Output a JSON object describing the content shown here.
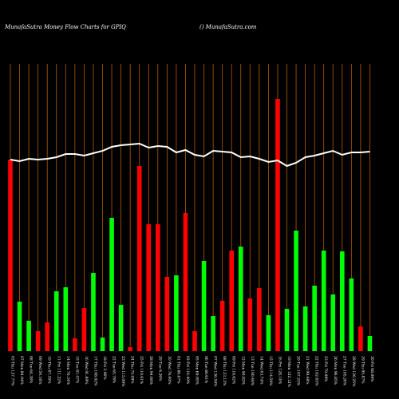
{
  "chart_data": {
    "type": "bar",
    "title": "MunafaSutra  Money Flow  Charts for GPIQ",
    "subtitle": "() MunafaSutra.com",
    "categories": [
      "03 Thu 127.77%",
      "07 Mon 84.04%",
      "08 Tue 64.38%",
      "09 Wed 54.16%",
      "10 Thu 67.35%",
      "11 Fri 111.22%",
      "14 Mon 70.34%",
      "15 Tue 81.47%",
      "16 Wed 91.89%",
      "17 Thu 108.02%",
      "18 Fri 3.96%",
      "22 Tue 65.78%",
      "23 Wed 115.09%",
      "24 Thu 75.09%",
      "25 Fri 110.61%",
      "28 Mon 94.60%",
      "29 Tue 6.26%",
      "30 Wed 76.00%",
      "01 Thu 86.67%",
      "02 Fri 116.49%",
      "05 Mon 69.05%",
      "06 Tue 80.61%",
      "07 Wed 136.59%",
      "08 Thu 123.12%",
      "09 Fri 118.62%",
      "12 Mon 90.82%",
      "13 Tue 100.48%",
      "14 Wed 63.74%",
      "15 Thu 114.59%",
      "16 Fri 128.14%",
      "19 Mon 122.12%",
      "20 Tue 107.25%",
      "21 Wed 99.48%",
      "22 Thu 102.65%",
      "23 Fri 79.09%",
      "26 Mon 96.85%",
      "27 Tue 105.26%",
      "28 Wed 126.25%",
      "29 Thu 95.87%",
      "30 Fri 68.00%"
    ],
    "bars": {
      "values": [
        240,
        62,
        38,
        25,
        36,
        75,
        80,
        16,
        54,
        98,
        17,
        167,
        58,
        5,
        232,
        159,
        159,
        93,
        95,
        173,
        25,
        113,
        44,
        63,
        126,
        131,
        66,
        79,
        45,
        316,
        53,
        151,
        56,
        82,
        126,
        71,
        125,
        91,
        31,
        19
      ],
      "colors": [
        "#ff0000",
        "#00ff00",
        "#00ff00",
        "#ff0000",
        "#ff0000",
        "#00ff00",
        "#00ff00",
        "#ff0000",
        "#ff0000",
        "#00ff00",
        "#00ff00",
        "#00ff00",
        "#00ff00",
        "#ff0000",
        "#ff0000",
        "#ff0000",
        "#ff0000",
        "#ff0000",
        "#00ff00",
        "#ff0000",
        "#ff0000",
        "#00ff00",
        "#00ff00",
        "#ff0000",
        "#ff0000",
        "#00ff00",
        "#ff0000",
        "#ff0000",
        "#00ff00",
        "#ff0000",
        "#00ff00",
        "#00ff00",
        "#00ff00",
        "#00ff00",
        "#00ff00",
        "#00ff00",
        "#00ff00",
        "#00ff00",
        "#ff0000",
        "#00ff00"
      ]
    },
    "line": {
      "color": "#ffffff",
      "values": [
        240,
        238,
        241,
        240,
        241,
        243,
        247,
        247,
        245,
        248,
        251,
        256,
        258,
        259,
        260,
        255,
        257,
        256,
        249,
        252,
        246,
        244,
        251,
        250,
        249,
        243,
        244,
        241,
        237,
        239,
        232,
        236,
        243,
        245,
        248,
        251,
        246,
        249,
        249,
        250
      ]
    },
    "ylim": [
      0,
      360
    ],
    "grid_color": "#b35c00"
  }
}
